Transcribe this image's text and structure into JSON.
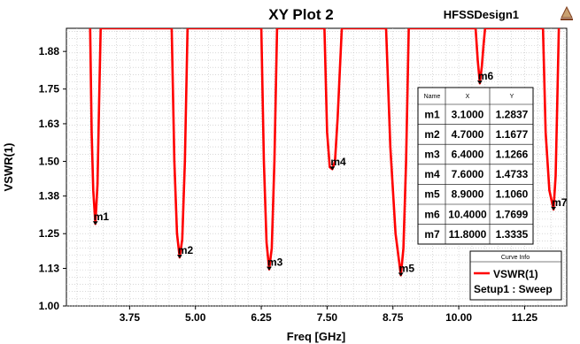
{
  "chart_data": {
    "type": "line",
    "title": "XY Plot 2",
    "design_name": "HFSSDesign1",
    "xlabel": "Freq [GHz]",
    "ylabel": "VSWR(1)",
    "xlim": [
      2.55,
      12.05
    ],
    "ylim": [
      1.0,
      1.96
    ],
    "x_ticks": [
      "3.75",
      "5.00",
      "6.25",
      "7.50",
      "8.75",
      "10.00",
      "11.25"
    ],
    "y_ticks": [
      "1.00",
      "1.13",
      "1.25",
      "1.38",
      "1.50",
      "1.63",
      "1.75",
      "1.88"
    ],
    "grid": true,
    "legend_title": "Curve Info",
    "legend_position": "bottom-right",
    "series": [
      {
        "name": "VSWR(1)",
        "setup": "Setup1 : Sweep",
        "color": "#ff0000",
        "x": [
          3.0,
          3.03,
          3.06,
          3.1,
          3.14,
          3.17,
          3.2,
          4.55,
          4.6,
          4.65,
          4.7,
          4.75,
          4.8,
          4.85,
          6.25,
          6.3,
          6.35,
          6.4,
          6.45,
          6.5,
          6.55,
          7.45,
          7.5,
          7.55,
          7.6,
          7.65,
          7.7,
          7.78,
          8.62,
          8.7,
          8.8,
          8.9,
          8.95,
          9.0,
          9.05,
          10.32,
          10.36,
          10.4,
          10.44,
          10.47,
          10.5,
          11.6,
          11.65,
          11.72,
          11.8,
          11.84,
          11.87,
          11.9
        ],
        "y": [
          1.96,
          1.6,
          1.4,
          1.2837,
          1.42,
          1.7,
          1.96,
          1.96,
          1.5,
          1.25,
          1.1677,
          1.23,
          1.5,
          1.96,
          1.96,
          1.5,
          1.22,
          1.1266,
          1.2,
          1.5,
          1.96,
          1.96,
          1.6,
          1.48,
          1.4733,
          1.5,
          1.65,
          1.96,
          1.96,
          1.55,
          1.25,
          1.106,
          1.2,
          1.5,
          1.96,
          1.96,
          1.85,
          1.7699,
          1.83,
          1.9,
          1.96,
          1.96,
          1.6,
          1.4,
          1.3335,
          1.45,
          1.7,
          1.96
        ]
      }
    ],
    "markers": [
      {
        "name": "m1",
        "x": "3.1000",
        "y": "1.2837"
      },
      {
        "name": "m2",
        "x": "4.7000",
        "y": "1.1677"
      },
      {
        "name": "m3",
        "x": "6.4000",
        "y": "1.1266"
      },
      {
        "name": "m4",
        "x": "7.6000",
        "y": "1.4733"
      },
      {
        "name": "m5",
        "x": "8.9000",
        "y": "1.1060"
      },
      {
        "name": "m6",
        "x": "10.4000",
        "y": "1.7699"
      },
      {
        "name": "m7",
        "x": "11.8000",
        "y": "1.3335"
      }
    ],
    "marker_table": {
      "headers": [
        "Name",
        "X",
        "Y"
      ]
    }
  }
}
